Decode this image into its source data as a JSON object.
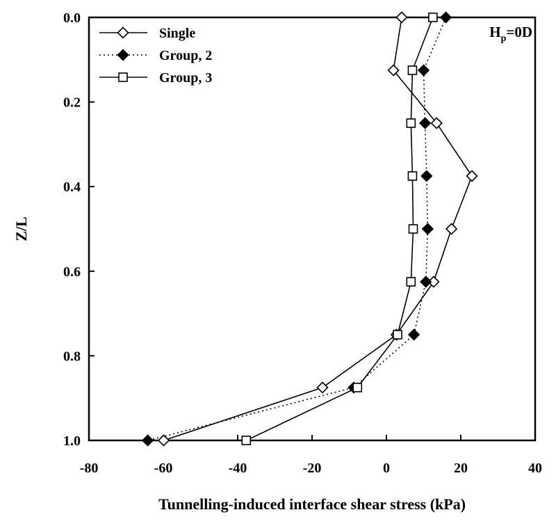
{
  "chart_data": {
    "type": "line",
    "xlabel": "Tunnelling-induced interface shear stress (kPa)",
    "ylabel": "Z/L",
    "annotation": {
      "main": "H",
      "sub": "p",
      "rest": "=0D"
    },
    "xlim": [
      -80,
      40
    ],
    "ylim": [
      0.0,
      1.0
    ],
    "y_inverted": true,
    "x_axis_position": "bottom",
    "grid": false,
    "legend_position": "top-left",
    "x_ticks": [
      -80,
      -60,
      -40,
      -20,
      0,
      20,
      40
    ],
    "x_tick_labels": [
      "-80",
      "-60",
      "-40",
      "-20",
      "0",
      "20",
      "40"
    ],
    "y_ticks": [
      0.0,
      0.2,
      0.4,
      0.6,
      0.8,
      1.0
    ],
    "y_tick_labels": [
      "0.0",
      "0.2",
      "0.4",
      "0.6",
      "0.8",
      "1.0"
    ],
    "series": [
      {
        "name": "Single",
        "marker": "diamond-open",
        "line_style": "solid",
        "color": "#000000",
        "points": [
          {
            "x": 4.1,
            "y": 0.0
          },
          {
            "x": 1.9,
            "y": 0.125
          },
          {
            "x": 13.5,
            "y": 0.25
          },
          {
            "x": 23.0,
            "y": 0.375
          },
          {
            "x": 17.5,
            "y": 0.5
          },
          {
            "x": 12.7,
            "y": 0.625
          },
          {
            "x": 2.7,
            "y": 0.75
          },
          {
            "x": -17.2,
            "y": 0.875
          },
          {
            "x": -59.9,
            "y": 1.0
          }
        ]
      },
      {
        "name": "Group, 2",
        "marker": "diamond-filled",
        "line_style": "dotted",
        "color": "#000000",
        "points": [
          {
            "x": 16.0,
            "y": 0.0
          },
          {
            "x": 10.0,
            "y": 0.125
          },
          {
            "x": 10.4,
            "y": 0.25
          },
          {
            "x": 10.8,
            "y": 0.375
          },
          {
            "x": 11.1,
            "y": 0.5
          },
          {
            "x": 10.6,
            "y": 0.625
          },
          {
            "x": 7.4,
            "y": 0.75
          },
          {
            "x": -8.8,
            "y": 0.875
          },
          {
            "x": -64.2,
            "y": 1.0
          }
        ]
      },
      {
        "name": "Group, 3",
        "marker": "square-open",
        "line_style": "solid",
        "color": "#000000",
        "points": [
          {
            "x": 12.5,
            "y": 0.0
          },
          {
            "x": 7.0,
            "y": 0.125
          },
          {
            "x": 6.6,
            "y": 0.25
          },
          {
            "x": 7.0,
            "y": 0.375
          },
          {
            "x": 7.2,
            "y": 0.5
          },
          {
            "x": 6.6,
            "y": 0.625
          },
          {
            "x": 3.0,
            "y": 0.75
          },
          {
            "x": -7.8,
            "y": 0.875
          },
          {
            "x": -37.7,
            "y": 1.0
          }
        ]
      }
    ]
  }
}
